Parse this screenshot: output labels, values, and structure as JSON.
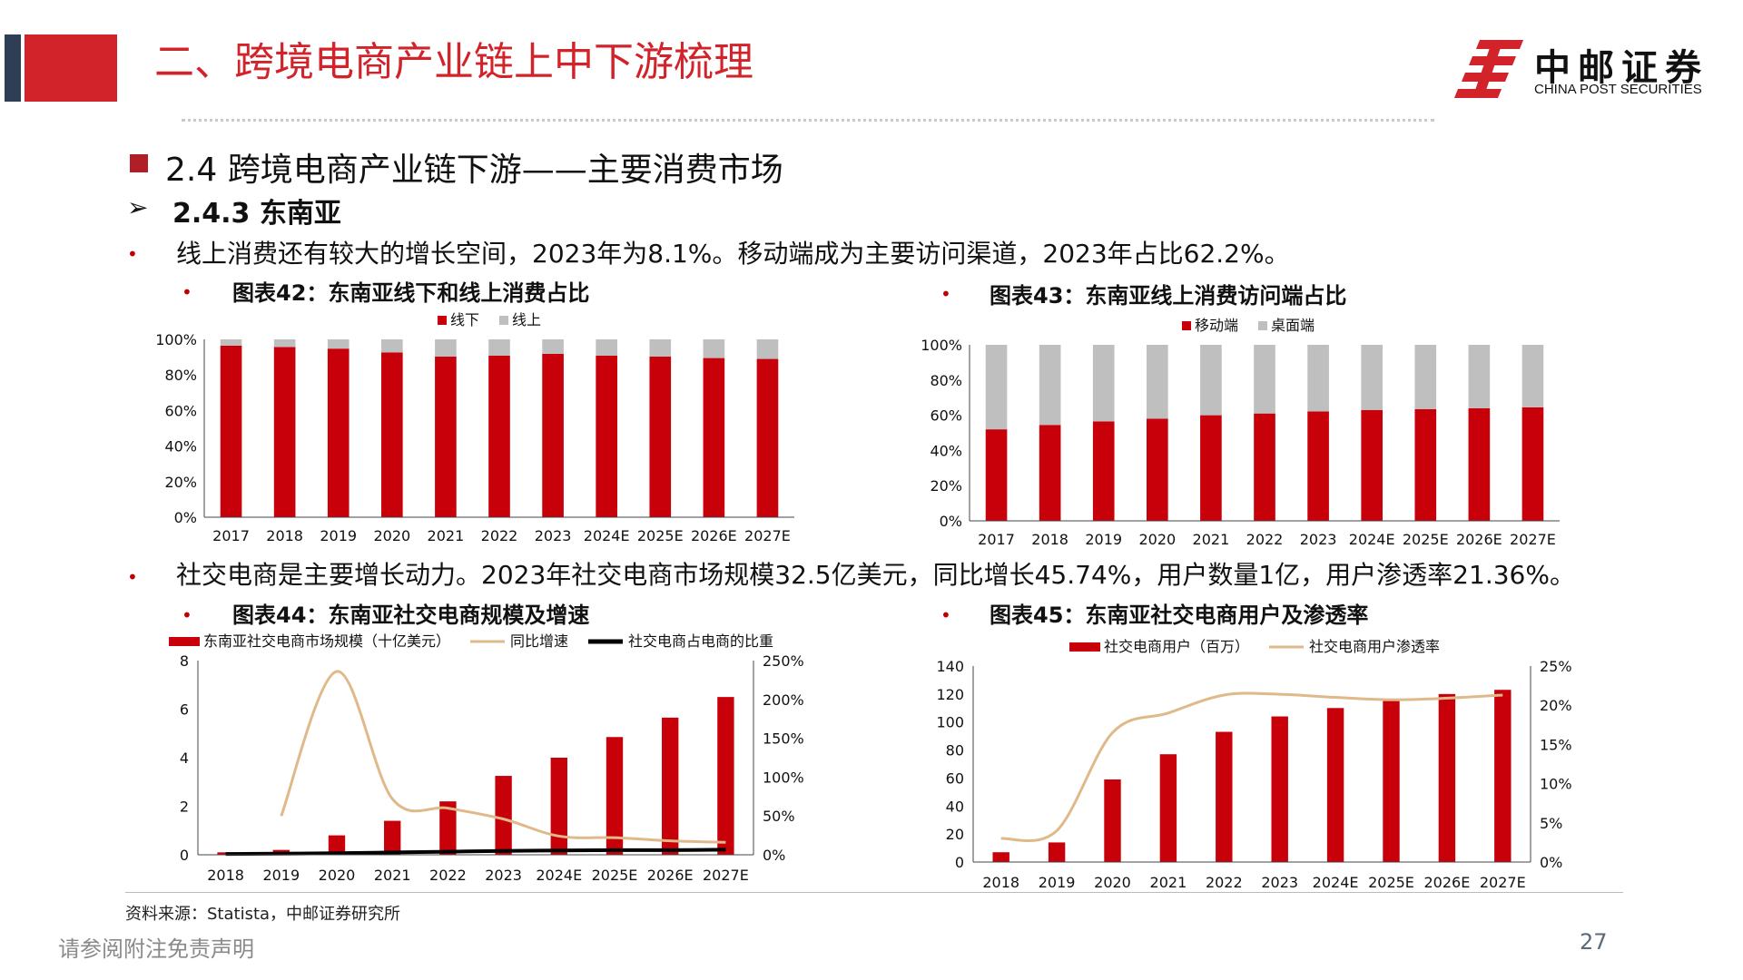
{
  "header": {
    "title": "二、跨境电商产业链上中下游梳理",
    "logo_cn": "中邮证券",
    "logo_en": "CHINA POST SECURITIES"
  },
  "section": {
    "title": "2.4 跨境电商产业链下游——主要消费市场",
    "subtitle": "2.4.3 东南亚",
    "bullet_marker": "•",
    "arrow_marker": "➢"
  },
  "text": {
    "bullet1": "线上消费还有较大的增长空间，2023年为8.1%。移动端成为主要访问渠道，2023年占比62.2%。",
    "bullet2": "社交电商是主要增长动力。2023年社交电商市场规模32.5亿美元，同比增长45.74%，用户数量1亿，用户渗透率21.36%。"
  },
  "captions": {
    "c42": "图表42：东南亚线下和线上消费占比",
    "c43": "图表43：东南亚线上消费访问端占比",
    "c44": "图表44：东南亚社交电商规模及增速",
    "c45": "图表45：东南亚社交电商用户及渗透率"
  },
  "colors": {
    "red": "#c8000a",
    "gray": "#bfbfbf",
    "tan": "#e0b98a",
    "black": "#000000",
    "brand_red": "#d2232a"
  },
  "chart_data": [
    {
      "id": "c42",
      "type": "bar",
      "stacked": true,
      "categories": [
        "2017",
        "2018",
        "2019",
        "2020",
        "2021",
        "2022",
        "2023",
        "2024E",
        "2025E",
        "2026E",
        "2027E"
      ],
      "series": [
        {
          "name": "线下",
          "values": [
            96.5,
            95.7,
            94.8,
            92.6,
            90.3,
            90.9,
            91.9,
            90.9,
            90.3,
            89.5,
            89.0
          ]
        },
        {
          "name": "线上",
          "values": [
            3.5,
            4.3,
            5.2,
            7.4,
            9.7,
            9.1,
            8.1,
            9.1,
            9.7,
            10.5,
            11.0
          ]
        }
      ],
      "yticks": [
        "0%",
        "20%",
        "40%",
        "60%",
        "80%",
        "100%"
      ],
      "ylim": [
        0,
        100
      ],
      "legend": "top"
    },
    {
      "id": "c43",
      "type": "bar",
      "stacked": true,
      "categories": [
        "2017",
        "2018",
        "2019",
        "2020",
        "2021",
        "2022",
        "2023",
        "2024E",
        "2025E",
        "2026E",
        "2027E"
      ],
      "series": [
        {
          "name": "移动端",
          "values": [
            52,
            54.5,
            56.5,
            58,
            60,
            61,
            62.2,
            63,
            63.5,
            64,
            64.5
          ]
        },
        {
          "name": "桌面端",
          "values": [
            48,
            45.5,
            43.5,
            42,
            40,
            39,
            37.8,
            37,
            36.5,
            36,
            35.5
          ]
        }
      ],
      "yticks": [
        "0%",
        "20%",
        "40%",
        "60%",
        "80%",
        "100%"
      ],
      "ylim": [
        0,
        100
      ],
      "legend": "top"
    },
    {
      "id": "c44",
      "type": "bar",
      "categories": [
        "2018",
        "2019",
        "2020",
        "2021",
        "2022",
        "2023",
        "2024E",
        "2025E",
        "2026E",
        "2027E"
      ],
      "series": [
        {
          "name": "东南亚社交电商市场规模（十亿美元）",
          "kind": "bar",
          "axis": "left",
          "values": [
            0.1,
            0.2,
            0.8,
            1.4,
            2.2,
            3.25,
            4.0,
            4.85,
            5.65,
            6.5
          ]
        },
        {
          "name": "同比增速",
          "kind": "line",
          "axis": "right",
          "values": [
            null,
            50,
            236,
            72,
            60,
            46,
            24,
            22,
            18,
            16
          ]
        },
        {
          "name": "社交电商占电商的比重",
          "kind": "line",
          "axis": "right",
          "values": [
            1,
            1.5,
            2,
            3,
            4,
            5,
            5.5,
            6,
            6,
            6.5
          ]
        }
      ],
      "yticks_left": [
        "0",
        "2",
        "4",
        "6",
        "8"
      ],
      "ylim_left": [
        0,
        8
      ],
      "yticks_right": [
        "0%",
        "50%",
        "100%",
        "150%",
        "200%",
        "250%"
      ],
      "ylim_right": [
        0,
        250
      ],
      "legend": "top"
    },
    {
      "id": "c45",
      "type": "bar",
      "categories": [
        "2018",
        "2019",
        "2020",
        "2021",
        "2022",
        "2023",
        "2024E",
        "2025E",
        "2026E",
        "2027E"
      ],
      "series": [
        {
          "name": "社交电商用户（百万）",
          "kind": "bar",
          "axis": "left",
          "values": [
            7,
            14,
            59,
            77,
            93,
            104,
            110,
            115,
            120,
            123
          ]
        },
        {
          "name": "社交电商用户渗透率",
          "kind": "line",
          "axis": "right",
          "values": [
            3,
            4,
            16.5,
            19,
            21.3,
            21.4,
            21,
            20.7,
            20.9,
            21.3
          ]
        }
      ],
      "yticks_left": [
        "0",
        "20",
        "40",
        "60",
        "80",
        "100",
        "120",
        "140"
      ],
      "ylim_left": [
        0,
        140
      ],
      "yticks_right": [
        "0%",
        "5%",
        "10%",
        "15%",
        "20%",
        "25%"
      ],
      "ylim_right": [
        0,
        25
      ],
      "legend": "top"
    }
  ],
  "footer": {
    "source": "资料来源：Statista，中邮证券研究所",
    "disclaimer": "请参阅附注免责声明",
    "page": "27"
  }
}
